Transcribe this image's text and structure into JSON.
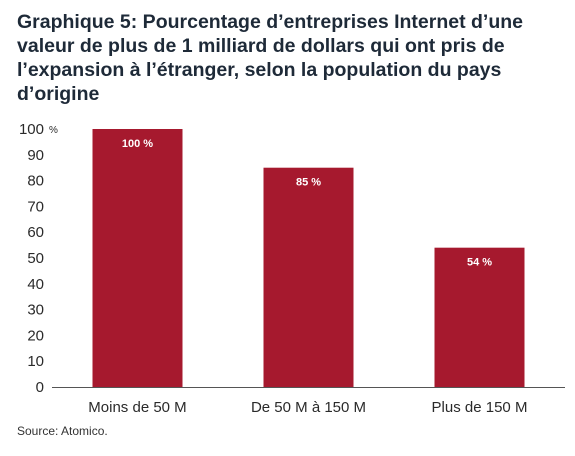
{
  "chart_data": {
    "type": "bar",
    "title": "Graphique 5: Pourcentage d’entreprises Internet d’une valeur de plus de 1 milliard de dollars qui ont pris de l’expansion à l’étranger, selon la population du pays d’origine",
    "categories": [
      "Moins de 50 M",
      "De 50 M à 150 M",
      "Plus de 150 M"
    ],
    "values": [
      100,
      85,
      54
    ],
    "data_labels": [
      "100 %",
      "85 %",
      "54 %"
    ],
    "ylim": [
      0,
      100
    ],
    "yticks": [
      0,
      10,
      20,
      30,
      40,
      50,
      60,
      70,
      80,
      90,
      100
    ],
    "yunit": "%",
    "bar_color": "#a6192e",
    "grid": false,
    "source": "Source: Atomico."
  }
}
